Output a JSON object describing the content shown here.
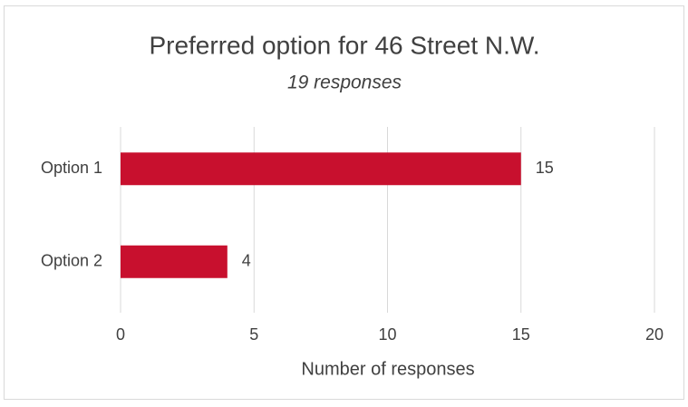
{
  "chart_data": {
    "type": "bar",
    "orientation": "horizontal",
    "title": "Preferred option for 46 Street N.W.",
    "subtitle": "19 responses",
    "x_label": "Number of responses",
    "categories": [
      "Option 1",
      "Option 2"
    ],
    "values": [
      15,
      4
    ],
    "color": "#c8102e",
    "xlim": [
      0,
      20
    ],
    "xticks": [
      0,
      5,
      10,
      15,
      20
    ],
    "grid": true
  }
}
